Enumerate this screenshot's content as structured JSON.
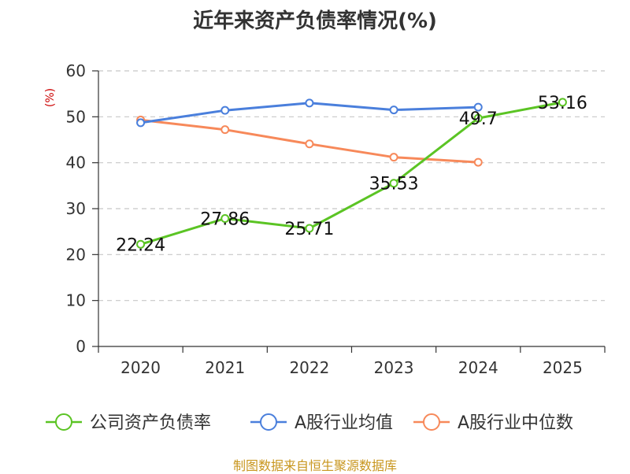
{
  "chart_data": {
    "type": "line",
    "title": "近年来资产负债率情况(%)",
    "ylabel": "(%)",
    "xlabel": "",
    "categories": [
      "2020",
      "2021",
      "2022",
      "2023",
      "2024",
      "2025"
    ],
    "ylim": [
      0,
      60
    ],
    "yticks": [
      0,
      10,
      20,
      30,
      40,
      50,
      60
    ],
    "grid": true,
    "legend_position": "bottom",
    "series": [
      {
        "name": "公司资产负债率",
        "color": "#5bc424",
        "values": [
          22.24,
          27.86,
          25.71,
          35.53,
          49.7,
          53.16
        ],
        "labels": [
          "22.24",
          "27.86",
          "25.71",
          "35.53",
          "49.7",
          "53.16"
        ]
      },
      {
        "name": "A股行业均值",
        "color": "#4a7fdc",
        "values": [
          48.7,
          51.4,
          53.0,
          51.5,
          52.1,
          null
        ],
        "labels": null
      },
      {
        "name": "A股行业中位数",
        "color": "#f7895a",
        "values": [
          49.3,
          47.2,
          44.1,
          41.2,
          40.1,
          null
        ],
        "labels": null
      }
    ]
  },
  "source": "制图数据来自恒生聚源数据库"
}
